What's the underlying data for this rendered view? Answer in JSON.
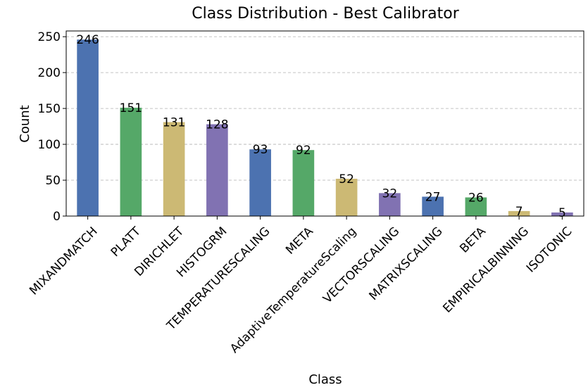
{
  "chart_data": {
    "type": "bar",
    "title": "Class Distribution - Best Calibrator",
    "xlabel": "Class",
    "ylabel": "Count",
    "ylim": [
      0,
      258
    ],
    "yticks": [
      0,
      50,
      100,
      150,
      200,
      250
    ],
    "grid": "y-dashed",
    "categories": [
      "MIXANDMATCH",
      "PLATT",
      "DIRICHLET",
      "HISTOGRM",
      "TEMPERATURESCALING",
      "META",
      "AdaptiveTemperatureScaling",
      "VECTORSCALING",
      "MATRIXSCALING",
      "BETA",
      "EMPIRICALBINNING",
      "ISOTONIC"
    ],
    "values": [
      246,
      151,
      131,
      128,
      93,
      92,
      52,
      32,
      27,
      26,
      7,
      5
    ],
    "colors": [
      "#4c72b0",
      "#55a868",
      "#ccb974",
      "#8172b2"
    ]
  }
}
